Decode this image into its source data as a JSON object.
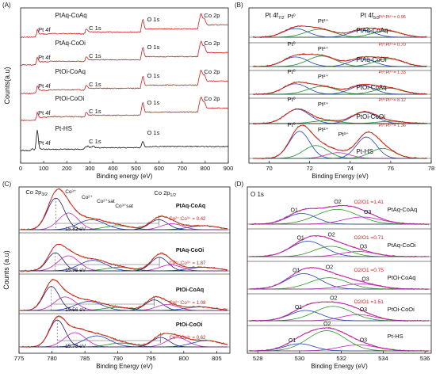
{
  "colors": {
    "black": "#111111",
    "red": "#cc1f1f",
    "blue": "#1f3fbf",
    "green": "#1a8f2a",
    "magenta": "#c024c0",
    "navy": "#202070",
    "fit_data": "#c06a2a",
    "ox_green": "#2a9a2a"
  },
  "chart_data": [
    {
      "panel": "(A)",
      "type": "line",
      "xlabel": "Binding  energy (eV)",
      "ylabel": "Counts(a.u)",
      "xlim": [
        0,
        900
      ],
      "xticks": [
        "0",
        "100",
        "200",
        "300",
        "400",
        "500",
        "600",
        "700",
        "800",
        "900"
      ],
      "series": [
        {
          "name": "PtAq-CoAq",
          "color": "red",
          "peaks": {
            "Pt 4f": 72,
            "C 1s": 285,
            "O 1s": 530,
            "Co 2p": 781
          },
          "peak_labels": [
            "Pt 4f",
            "C 1s",
            "O 1s",
            "Co 2p"
          ]
        },
        {
          "name": "PtAq-CoOi",
          "color": "red",
          "peaks": {
            "Pt 4f": 72,
            "C 1s": 285,
            "O 1s": 530,
            "Co 2p": 781
          },
          "peak_labels": [
            "Pt 4f",
            "C 1s",
            "O 1s",
            "Co 2p"
          ]
        },
        {
          "name": "PtOi-CoAq",
          "color": "red",
          "peaks": {
            "Pt 4f": 72,
            "C 1s": 285,
            "O 1s": 530,
            "Co 2p": 781
          },
          "peak_labels": [
            "Pt 4f",
            "C 1s",
            "O 1s",
            "Co 2p"
          ]
        },
        {
          "name": "PtOi-CoOi",
          "color": "red",
          "peaks": {
            "Pt 4f": 72,
            "C 1s": 285,
            "O 1s": 530,
            "Co 2p": 781
          },
          "peak_labels": [
            "Pt 4f",
            "C 1s",
            "O 1s",
            "Co 2p"
          ]
        },
        {
          "name": "Pt-HS",
          "color": "black",
          "peaks": {
            "Pt 4f": 72,
            "C 1s": 285,
            "O 1s": 530
          },
          "peak_labels": [
            "Pt 4f",
            "C 1s",
            "O 1s"
          ]
        }
      ]
    },
    {
      "panel": "(B)",
      "type": "line",
      "xlabel": "Binding Energy (eV)",
      "xlim": [
        69,
        78
      ],
      "xticks": [
        "70",
        "72",
        "74",
        "76",
        "78"
      ],
      "header_left": "Pt 4f",
      "header_left_sub": "7/2",
      "header_right": "Pt 4f",
      "header_right_sub": "5/2",
      "series": [
        {
          "name": "PtAq-CoAq",
          "ratio": "Pt⁰:Pt²⁺= 0.96",
          "labels": [
            "Pt⁰",
            "Pt²⁺"
          ],
          "components": [
            {
              "c": 71.3,
              "h": 0.55,
              "w": 0.6,
              "color": "blue"
            },
            {
              "c": 72.5,
              "h": 0.5,
              "w": 0.7,
              "color": "green"
            },
            {
              "c": 74.6,
              "h": 0.45,
              "w": 0.6,
              "color": "blue"
            },
            {
              "c": 75.8,
              "h": 0.4,
              "w": 0.7,
              "color": "green"
            }
          ]
        },
        {
          "name": "PtAq-CoOi",
          "ratio": "Pt⁰:Pt²⁺= 0.70",
          "labels": [
            "Pt⁰",
            "Pt²⁺"
          ],
          "components": [
            {
              "c": 71.3,
              "h": 0.55,
              "w": 0.6,
              "color": "blue"
            },
            {
              "c": 72.6,
              "h": 0.6,
              "w": 0.7,
              "color": "green"
            },
            {
              "c": 74.6,
              "h": 0.45,
              "w": 0.6,
              "color": "blue"
            },
            {
              "c": 75.9,
              "h": 0.45,
              "w": 0.7,
              "color": "green"
            }
          ]
        },
        {
          "name": "PtOi-CoAq",
          "ratio": "Pt⁰:Pt²⁺= 1.33",
          "labels": [
            "Pt⁰",
            "Pt²⁺"
          ],
          "components": [
            {
              "c": 71.3,
              "h": 0.6,
              "w": 0.6,
              "color": "blue"
            },
            {
              "c": 72.6,
              "h": 0.45,
              "w": 0.7,
              "color": "green"
            },
            {
              "c": 74.6,
              "h": 0.5,
              "w": 0.6,
              "color": "blue"
            },
            {
              "c": 75.9,
              "h": 0.35,
              "w": 0.7,
              "color": "green"
            }
          ]
        },
        {
          "name": "PtOi-CoOi",
          "ratio": "Pt⁰:Pt²⁺= 8.12",
          "labels": [
            "Pt⁰",
            "Pt²⁺"
          ],
          "components": [
            {
              "c": 71.4,
              "h": 0.75,
              "w": 0.6,
              "color": "blue"
            },
            {
              "c": 72.8,
              "h": 0.15,
              "w": 0.7,
              "color": "green"
            },
            {
              "c": 74.7,
              "h": 0.6,
              "w": 0.6,
              "color": "blue"
            },
            {
              "c": 76.0,
              "h": 0.12,
              "w": 0.7,
              "color": "green"
            }
          ]
        },
        {
          "name": "Pt-HS",
          "ratio": "Pt⁰:Pt²⁺= 1.36",
          "labels": [
            "Pt⁰",
            "Pt²⁺",
            "Pt³⁺"
          ],
          "components": [
            {
              "c": 71.5,
              "h": 0.95,
              "w": 0.5,
              "color": "blue"
            },
            {
              "c": 72.3,
              "h": 0.45,
              "w": 0.6,
              "color": "green"
            },
            {
              "c": 73.4,
              "h": 0.2,
              "w": 0.6,
              "color": "magenta"
            },
            {
              "c": 74.8,
              "h": 0.75,
              "w": 0.5,
              "color": "blue"
            },
            {
              "c": 75.6,
              "h": 0.35,
              "w": 0.6,
              "color": "green"
            }
          ]
        }
      ]
    },
    {
      "panel": "(C)",
      "type": "line",
      "xlabel": "Binding Energy (eV)",
      "ylabel": "Counts (a.u)",
      "xlim": [
        775,
        807
      ],
      "xticks": [
        "775",
        "780",
        "785",
        "790",
        "795",
        "800",
        "805"
      ],
      "header_labels": {
        "co2p32": "Co 2p",
        "co2p32_sub": "3/2",
        "co3": "Co³⁺",
        "co2": "Co²⁺",
        "co2sat": "Co²⁺sat",
        "co3sat": "Co³⁺sat",
        "co2p12": "Co 2p",
        "co2p12_sub": "1/2"
      },
      "series": [
        {
          "name": "PtAq-CoAq",
          "ratio": "Co²⁺:Co³⁺ = 0.42",
          "splitting": "15.82 eV"
        },
        {
          "name": "PtAq-CoOi",
          "ratio": "Co²⁺:Co³⁺ = 1.87",
          "splitting": "15.75 eV"
        },
        {
          "name": "PtOi-CoAq",
          "ratio": "Co²⁺:Co³⁺ = 1.08",
          "splitting": "15.56 eV"
        },
        {
          "name": "PtOi-CoOi",
          "ratio": "Co²⁺:Co³⁺ = 0.62",
          "splitting": "15.78 eV"
        }
      ]
    },
    {
      "panel": "(D)",
      "type": "line",
      "xlabel": "Binding Energy (eV)",
      "xlim": [
        527.5,
        536.3
      ],
      "xticks": [
        "528",
        "530",
        "532",
        "534",
        "536"
      ],
      "header": "O 1s",
      "series": [
        {
          "name": "PtAq-CoAq",
          "ratio": "O2/O1 =1.41",
          "labels": [
            "O1",
            "O2",
            "O3"
          ],
          "components": [
            {
              "c": 530.1,
              "h": 0.45,
              "w": 0.7,
              "color": "blue"
            },
            {
              "c": 531.8,
              "h": 0.62,
              "w": 1.0,
              "color": "ox_green"
            },
            {
              "c": 533.0,
              "h": 0.3,
              "w": 0.9,
              "color": "magenta"
            }
          ]
        },
        {
          "name": "PtAq-CoOi",
          "ratio": "O2/O1 =0.71",
          "labels": [
            "O1",
            "O2",
            "O3"
          ],
          "components": [
            {
              "c": 530.4,
              "h": 0.75,
              "w": 0.8,
              "color": "blue"
            },
            {
              "c": 531.5,
              "h": 0.5,
              "w": 0.8,
              "color": "ox_green"
            },
            {
              "c": 532.8,
              "h": 0.25,
              "w": 0.8,
              "color": "magenta"
            }
          ]
        },
        {
          "name": "PtOi-CoAq",
          "ratio": "O2/O1 =0.75",
          "labels": [
            "O1",
            "O2",
            "O3"
          ],
          "components": [
            {
              "c": 530.2,
              "h": 0.75,
              "w": 0.8,
              "color": "blue"
            },
            {
              "c": 531.4,
              "h": 0.55,
              "w": 0.9,
              "color": "ox_green"
            },
            {
              "c": 532.9,
              "h": 0.25,
              "w": 0.9,
              "color": "magenta"
            }
          ]
        },
        {
          "name": "PtOi-CoOi",
          "ratio": "O2/O1 =1.51",
          "labels": [
            "O1",
            "O2",
            "O3"
          ],
          "components": [
            {
              "c": 530.3,
              "h": 0.5,
              "w": 0.75,
              "color": "blue"
            },
            {
              "c": 531.6,
              "h": 0.7,
              "w": 0.9,
              "color": "ox_green"
            },
            {
              "c": 532.8,
              "h": 0.3,
              "w": 0.8,
              "color": "magenta"
            }
          ]
        },
        {
          "name": "Pt-HS",
          "ratio": "",
          "labels": [
            "O1",
            "O2",
            "O3"
          ],
          "components": [
            {
              "c": 530.0,
              "h": 0.3,
              "w": 0.7,
              "color": "blue"
            },
            {
              "c": 531.3,
              "h": 0.85,
              "w": 0.9,
              "color": "ox_green"
            },
            {
              "c": 532.8,
              "h": 0.25,
              "w": 0.9,
              "color": "magenta"
            }
          ]
        }
      ]
    }
  ]
}
